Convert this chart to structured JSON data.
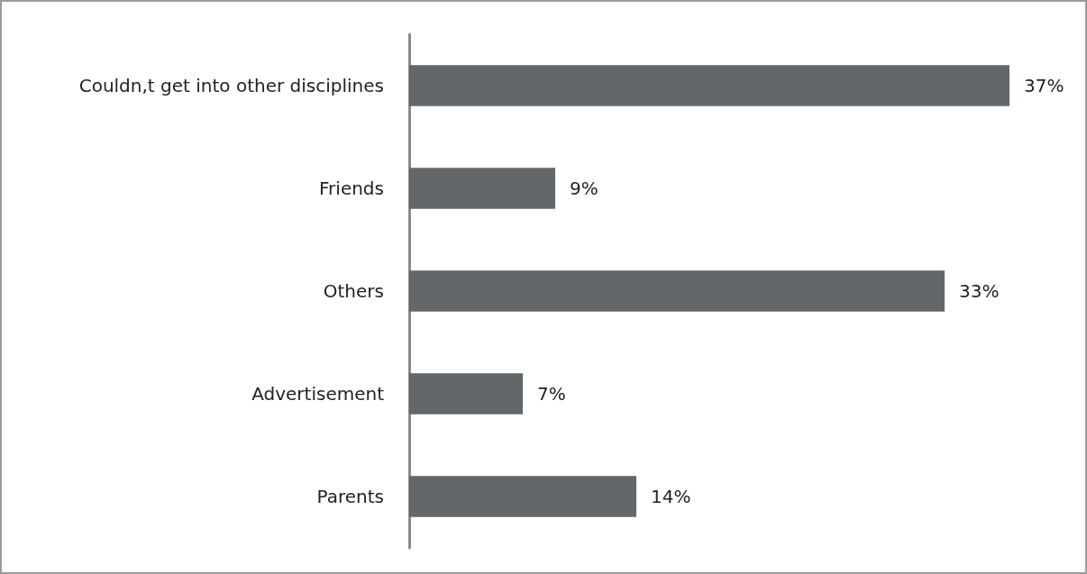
{
  "chart_data": {
    "type": "bar",
    "orientation": "horizontal",
    "categories": [
      "Couldn,t get into other disciplines",
      "Friends",
      "Others",
      "Advertisement",
      "Parents"
    ],
    "values": [
      37,
      9,
      33,
      7,
      14
    ],
    "value_labels": [
      "37%",
      "9%",
      "33%",
      "7%",
      "14%"
    ],
    "color": "#63676a"
  }
}
